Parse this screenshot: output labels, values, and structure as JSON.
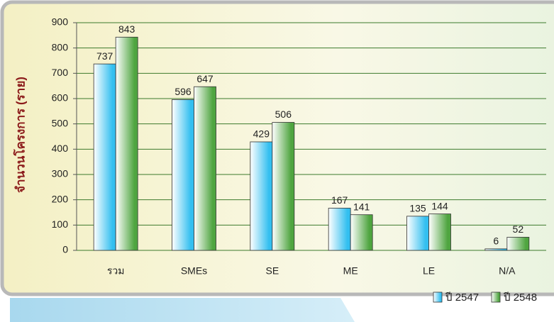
{
  "chart_data": {
    "type": "bar",
    "y_label": "จำนวนโครงการ (ราย)",
    "categories": [
      "รวม",
      "SMEs",
      "SE",
      "ME",
      "LE",
      "N/A"
    ],
    "series": [
      {
        "name": "ปี 2547",
        "color": "#33bff0",
        "values": [
          737,
          596,
          429,
          167,
          135,
          6
        ]
      },
      {
        "name": "ปี 2548",
        "color": "#4fa540",
        "values": [
          843,
          647,
          506,
          141,
          144,
          52
        ]
      }
    ],
    "ylim": [
      0,
      900
    ],
    "yticks": [
      0,
      100,
      200,
      300,
      400,
      500,
      600,
      700,
      800,
      900
    ],
    "grid": true,
    "legend": "bottom-right"
  }
}
